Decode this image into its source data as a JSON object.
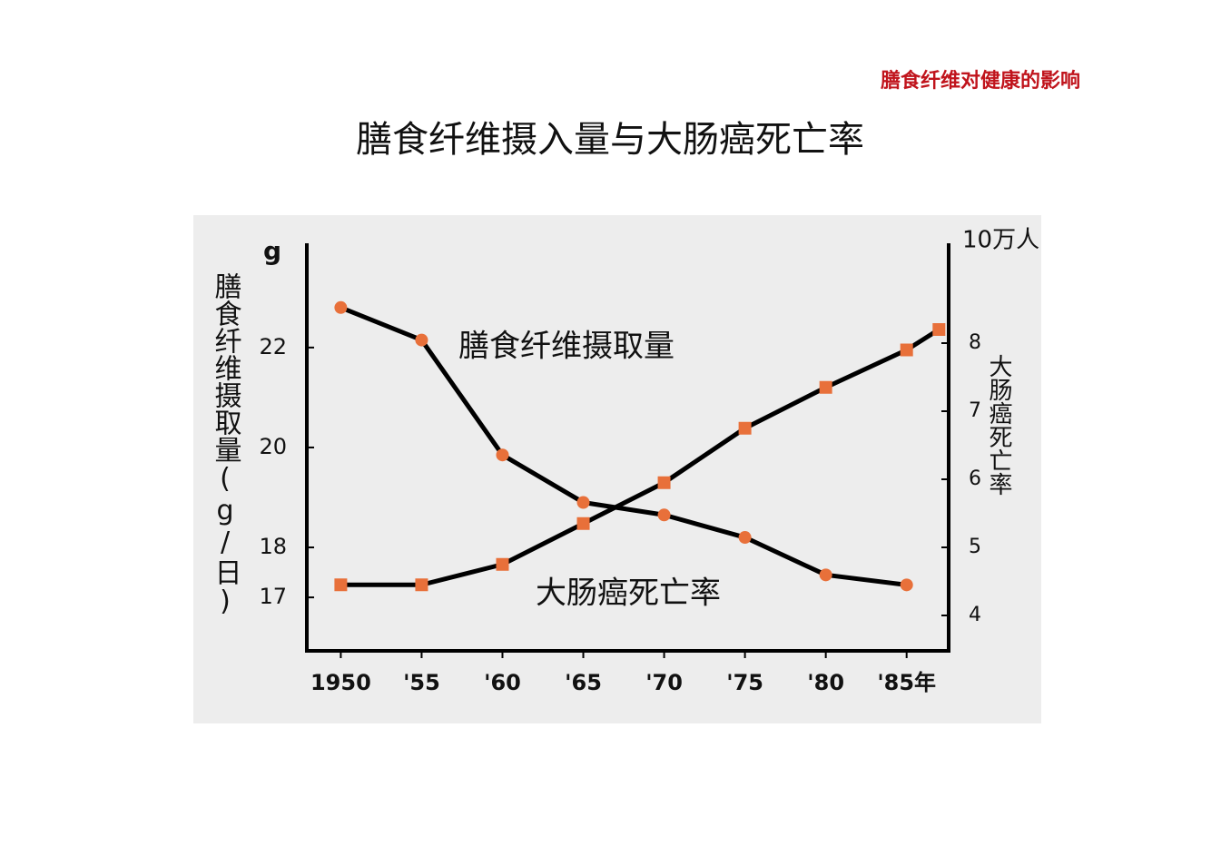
{
  "header": {
    "section": "膳食纤维对健康的影响",
    "title": "膳食纤维摄入量与大肠癌死亡率"
  },
  "chart_data": {
    "type": "line",
    "xlim": [
      1947.9,
      1987.6
    ],
    "xticks": [
      1950,
      {
        "value": 1955,
        "label": "'55"
      },
      {
        "value": 1960,
        "label": "'60"
      },
      {
        "value": 1965,
        "label": "'65"
      },
      {
        "value": 1970,
        "label": "'70"
      },
      {
        "value": 1975,
        "label": "'75"
      },
      {
        "value": 1980,
        "label": "'80"
      },
      {
        "value": 1985,
        "label": "'85年"
      }
    ],
    "ylim": [
      15.93,
      24.05
    ],
    "yticks": [
      17,
      18,
      20,
      22
    ],
    "y_unit": "g",
    "ylabel": "膳食纤维摄取量(g/日)",
    "y2lim": [
      3.48,
      9.44
    ],
    "y2ticks": [
      4,
      5,
      6,
      7,
      8
    ],
    "y2_unit": "10万人",
    "y2label": "大肠癌死亡率",
    "series": [
      {
        "name": "膳食纤维摄取量",
        "color": "#000000",
        "marker": "circle",
        "marker_color": "#e8703a",
        "x": [
          1950,
          1955,
          1960,
          1965,
          1970,
          1975,
          1980,
          1985
        ],
        "values": [
          22.8,
          22.15,
          19.85,
          18.9,
          18.65,
          18.2,
          17.45,
          17.25
        ]
      },
      {
        "name": "大肠癌死亡率",
        "color": "#000000",
        "marker": "square",
        "marker_color": "#e8703a",
        "axis": "y2",
        "x": [
          1950,
          1955,
          1960,
          1965,
          1970,
          1975,
          1980,
          1985,
          1987
        ],
        "values": [
          4.45,
          4.45,
          4.75,
          5.35,
          5.95,
          6.75,
          7.35,
          7.9,
          8.2
        ]
      }
    ]
  }
}
